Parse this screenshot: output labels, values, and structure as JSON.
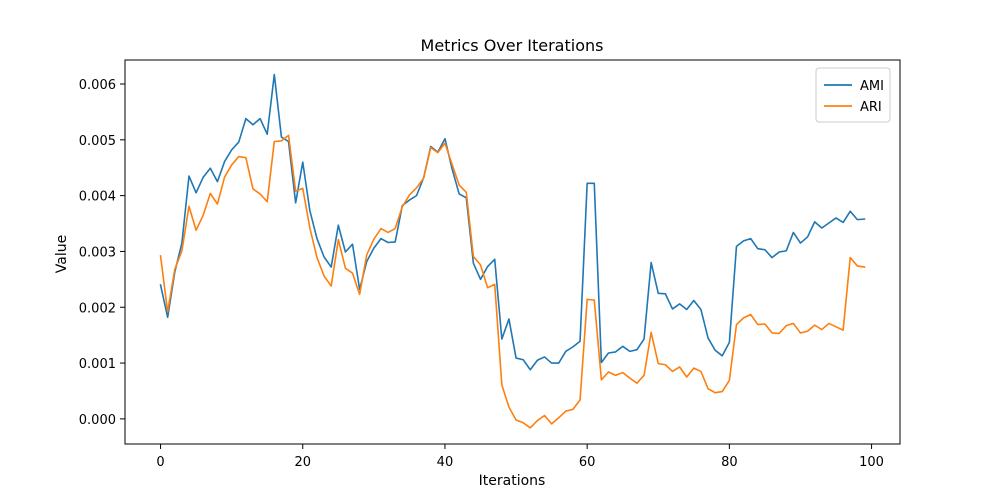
{
  "chart_data": {
    "type": "line",
    "title": "Metrics Over Iterations",
    "xlabel": "Iterations",
    "ylabel": "Value",
    "xlim": [
      -5,
      104
    ],
    "ylim": [
      -0.00045,
      0.00643
    ],
    "xticks": [
      0,
      20,
      40,
      60,
      80,
      100
    ],
    "xtick_labels": [
      "0",
      "20",
      "40",
      "60",
      "80",
      "100"
    ],
    "yticks": [
      0.0,
      0.001,
      0.002,
      0.003,
      0.004,
      0.005,
      0.006
    ],
    "ytick_labels": [
      "0.000",
      "0.001",
      "0.002",
      "0.003",
      "0.004",
      "0.005",
      "0.006"
    ],
    "grid": false,
    "legend_position": "top-right",
    "x": [
      0,
      1,
      2,
      3,
      4,
      5,
      6,
      7,
      8,
      9,
      10,
      11,
      12,
      13,
      14,
      15,
      16,
      17,
      18,
      19,
      20,
      21,
      22,
      23,
      24,
      25,
      26,
      27,
      28,
      29,
      30,
      31,
      32,
      33,
      34,
      35,
      36,
      37,
      38,
      39,
      40,
      41,
      42,
      43,
      44,
      45,
      46,
      47,
      48,
      49,
      50,
      51,
      52,
      53,
      54,
      55,
      56,
      57,
      58,
      59,
      60,
      61,
      62,
      63,
      64,
      65,
      66,
      67,
      68,
      69,
      70,
      71,
      72,
      73,
      74,
      75,
      76,
      77,
      78,
      79,
      80,
      81,
      82,
      83,
      84,
      85,
      86,
      87,
      88,
      89,
      90,
      91,
      92,
      93,
      94,
      95,
      96,
      97,
      98,
      99
    ],
    "series": [
      {
        "name": "AMI",
        "color": "#1f77b4",
        "values": [
          0.0024,
          0.00182,
          0.00263,
          0.00315,
          0.00435,
          0.00405,
          0.00433,
          0.00449,
          0.00425,
          0.00461,
          0.00482,
          0.00496,
          0.00538,
          0.00527,
          0.00538,
          0.0051,
          0.00617,
          0.00505,
          0.00497,
          0.00387,
          0.0046,
          0.00373,
          0.00323,
          0.0029,
          0.00272,
          0.00347,
          0.00299,
          0.00313,
          0.00232,
          0.00282,
          0.00306,
          0.00323,
          0.00316,
          0.00317,
          0.00382,
          0.00392,
          0.004,
          0.00432,
          0.00488,
          0.00478,
          0.00502,
          0.00448,
          0.00403,
          0.00396,
          0.00279,
          0.0025,
          0.00273,
          0.00286,
          0.00143,
          0.00179,
          0.00109,
          0.00106,
          0.00088,
          0.00105,
          0.00111,
          0.001,
          0.001,
          0.00121,
          0.00129,
          0.00139,
          0.00422,
          0.00422,
          0.00101,
          0.00118,
          0.0012,
          0.0013,
          0.00121,
          0.00124,
          0.00143,
          0.0028,
          0.00225,
          0.00224,
          0.00197,
          0.00206,
          0.00196,
          0.00212,
          0.00196,
          0.00145,
          0.00123,
          0.00113,
          0.00137,
          0.00309,
          0.00319,
          0.00323,
          0.00305,
          0.00303,
          0.00289,
          0.00299,
          0.00301,
          0.00334,
          0.00315,
          0.00326,
          0.00353,
          0.00342,
          0.00351,
          0.0036,
          0.00352,
          0.00372,
          0.00357,
          0.00358
        ]
      },
      {
        "name": "ARI",
        "color": "#ff7f0e",
        "values": [
          0.00292,
          0.00192,
          0.00268,
          0.00301,
          0.00381,
          0.00338,
          0.00365,
          0.00404,
          0.00385,
          0.00433,
          0.00455,
          0.0047,
          0.00468,
          0.00412,
          0.00403,
          0.00389,
          0.00497,
          0.00498,
          0.00508,
          0.00408,
          0.00413,
          0.00342,
          0.00289,
          0.00256,
          0.00238,
          0.00321,
          0.0027,
          0.00261,
          0.00223,
          0.00294,
          0.00322,
          0.00341,
          0.00334,
          0.00341,
          0.0038,
          0.00401,
          0.00414,
          0.00431,
          0.00486,
          0.00477,
          0.00494,
          0.00456,
          0.00419,
          0.00406,
          0.00291,
          0.00276,
          0.00235,
          0.00241,
          0.00061,
          0.00021,
          -2e-05,
          -7e-05,
          -0.00016,
          -3e-05,
          6e-05,
          -9e-05,
          2e-05,
          0.00014,
          0.00017,
          0.00034,
          0.00214,
          0.00213,
          0.0007,
          0.00084,
          0.00078,
          0.00083,
          0.00073,
          0.00064,
          0.00078,
          0.00155,
          0.00099,
          0.00097,
          0.00085,
          0.00093,
          0.00075,
          0.00091,
          0.00085,
          0.00054,
          0.00047,
          0.00049,
          0.00069,
          0.00169,
          0.00181,
          0.00187,
          0.00169,
          0.0017,
          0.00154,
          0.00153,
          0.00167,
          0.00171,
          0.00154,
          0.00157,
          0.00168,
          0.0016,
          0.00171,
          0.00165,
          0.00159,
          0.00289,
          0.00274,
          0.00272
        ]
      }
    ]
  }
}
